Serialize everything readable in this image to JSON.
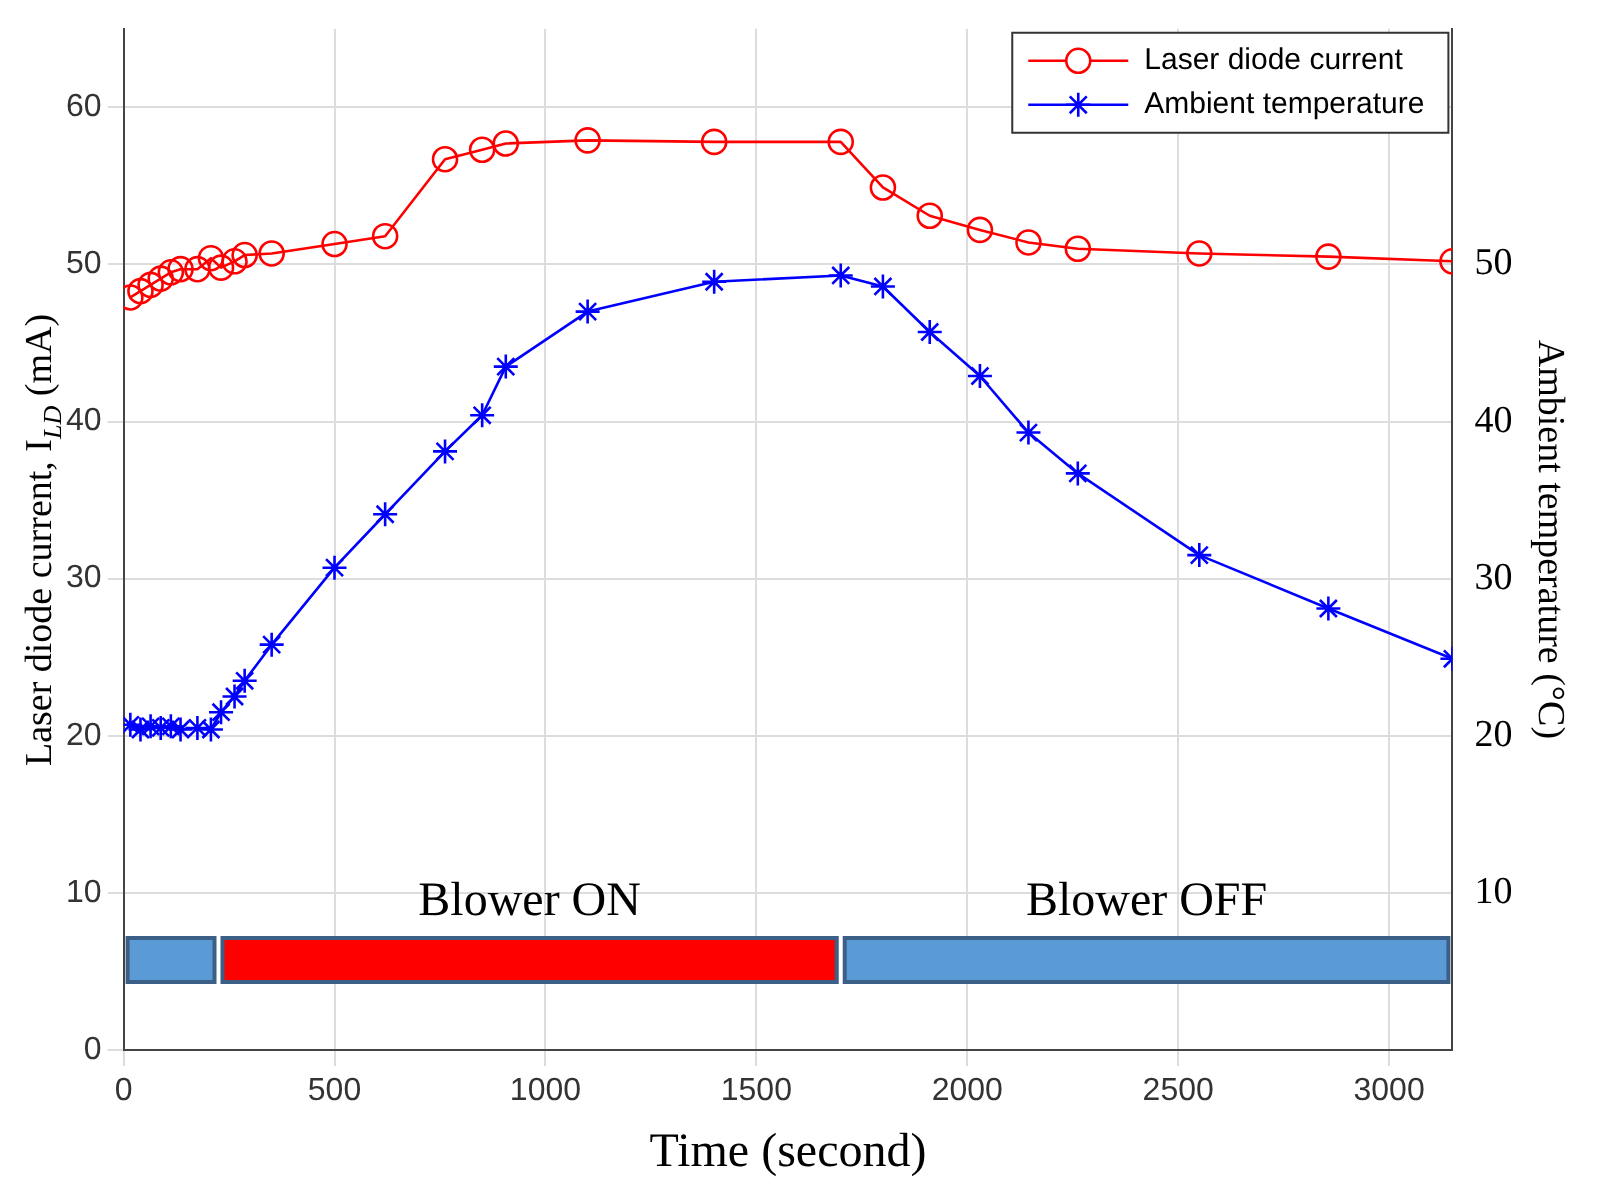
{
  "chart_data": {
    "type": "line",
    "xlabel": "Time (second)",
    "ylabel": "Laser diode current, I$_{LD}$ (mA)",
    "y2label": "Ambient temperature (°C)",
    "xlim": [
      0,
      3150
    ],
    "xticks": [
      0,
      500,
      1000,
      1500,
      2000,
      2500,
      3000
    ],
    "ylim": [
      0,
      65
    ],
    "yticks": [
      0,
      10,
      20,
      30,
      40,
      50,
      60
    ],
    "y2lim": [
      0,
      65
    ],
    "y2ticks": [
      10,
      20,
      30,
      40,
      50
    ],
    "grid": true,
    "legend": "top right",
    "line_style": "solid",
    "series": [
      {
        "name": "Laser diode current",
        "color": "#ff0000",
        "marker": "circle",
        "x": [
          16,
          40,
          64,
          88,
          112,
          135,
          175,
          207,
          231,
          263,
          287,
          351,
          500,
          620,
          762,
          850,
          906,
          1100,
          1400,
          1700,
          1800,
          1911,
          2030,
          2145,
          2262,
          2550,
          2856,
          3150
        ],
        "values": [
          47.9,
          48.3,
          48.7,
          49.1,
          49.5,
          49.7,
          49.7,
          50.4,
          49.8,
          50.2,
          50.6,
          50.7,
          51.3,
          51.8,
          56.7,
          57.3,
          57.7,
          57.9,
          57.8,
          57.8,
          54.9,
          53.1,
          52.2,
          51.4,
          51.0,
          50.7,
          50.5,
          50.2
        ]
      },
      {
        "name": "Ambient temperature",
        "color": "#0000ff",
        "marker": "cross",
        "axis": "y2",
        "x": [
          16,
          40,
          64,
          88,
          112,
          135,
          175,
          207,
          231,
          263,
          287,
          351,
          500,
          620,
          762,
          850,
          906,
          1100,
          1400,
          1700,
          1800,
          1911,
          2030,
          2145,
          2262,
          2550,
          2856,
          3150
        ],
        "values": [
          20.7,
          20.4,
          20.6,
          20.5,
          20.6,
          20.4,
          20.5,
          20.4,
          21.5,
          22.5,
          23.5,
          25.8,
          30.7,
          34.1,
          38.1,
          40.4,
          43.5,
          47.0,
          48.9,
          49.3,
          48.6,
          45.7,
          42.9,
          39.3,
          36.7,
          31.5,
          28.1,
          24.9
        ]
      }
    ],
    "bands": [
      {
        "axis": "x",
        "from": 0,
        "to": 225,
        "label": null,
        "color": "#5b9bd5"
      },
      {
        "axis": "x",
        "from": 225,
        "to": 1700,
        "label": "Blower ON",
        "color": "#ff0000"
      },
      {
        "axis": "x",
        "from": 1700,
        "to": 3150,
        "label": "Blower OFF",
        "color": "#5b9bd5"
      }
    ]
  }
}
